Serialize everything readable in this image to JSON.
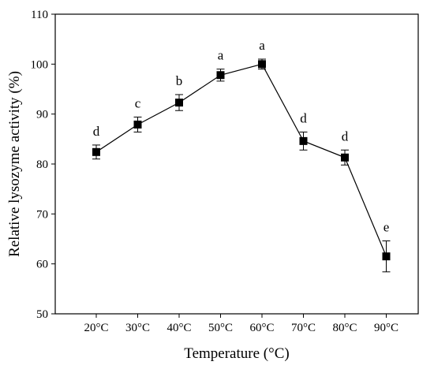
{
  "chart_data": {
    "type": "line",
    "xlabel": "Temperature (°C)",
    "ylabel": "Relative lysozyme activity (%)",
    "ylim": [
      50,
      110
    ],
    "yticks": [
      50,
      60,
      70,
      80,
      90,
      100,
      110
    ],
    "categories": [
      "20°C",
      "30°C",
      "40°C",
      "50°C",
      "60°C",
      "70°C",
      "80°C",
      "90°C"
    ],
    "series": [
      {
        "values": [
          82.4,
          87.9,
          92.3,
          97.8,
          100.0,
          84.6,
          81.3,
          61.5
        ],
        "error": [
          1.4,
          1.5,
          1.6,
          1.2,
          1.0,
          1.8,
          1.5,
          3.1
        ],
        "significance": [
          "d",
          "c",
          "b",
          "a",
          "a",
          "d",
          "d",
          "e"
        ]
      }
    ],
    "grid": false,
    "marker": "square",
    "color": "#000000"
  }
}
